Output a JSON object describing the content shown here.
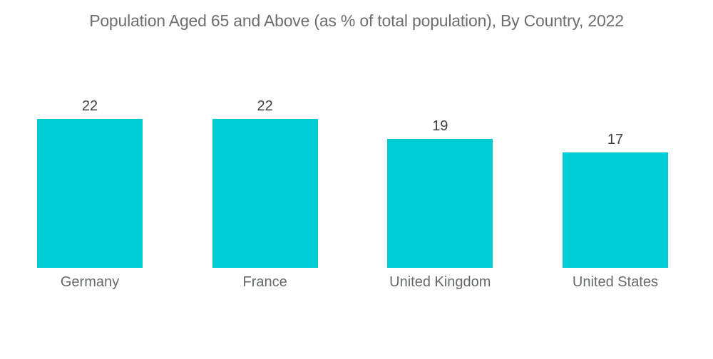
{
  "chart_data": {
    "type": "bar",
    "title": "Population Aged 65 and Above (as % of total population), By Country, 2022",
    "categories": [
      "Germany",
      "France",
      "United Kingdom",
      "United States"
    ],
    "values": [
      22,
      22,
      19,
      17
    ],
    "xlabel": "",
    "ylabel": "",
    "ylim": [
      0,
      22
    ],
    "grid": false,
    "axes_visible": false,
    "legend": "none",
    "data_labels_position": "above-bars",
    "bar_color": "#00CCD3",
    "title_color": "#6E6E6E",
    "value_label_color": "#3D4043",
    "category_label_color": "#66696C",
    "background_color": "#FFFFFF"
  }
}
